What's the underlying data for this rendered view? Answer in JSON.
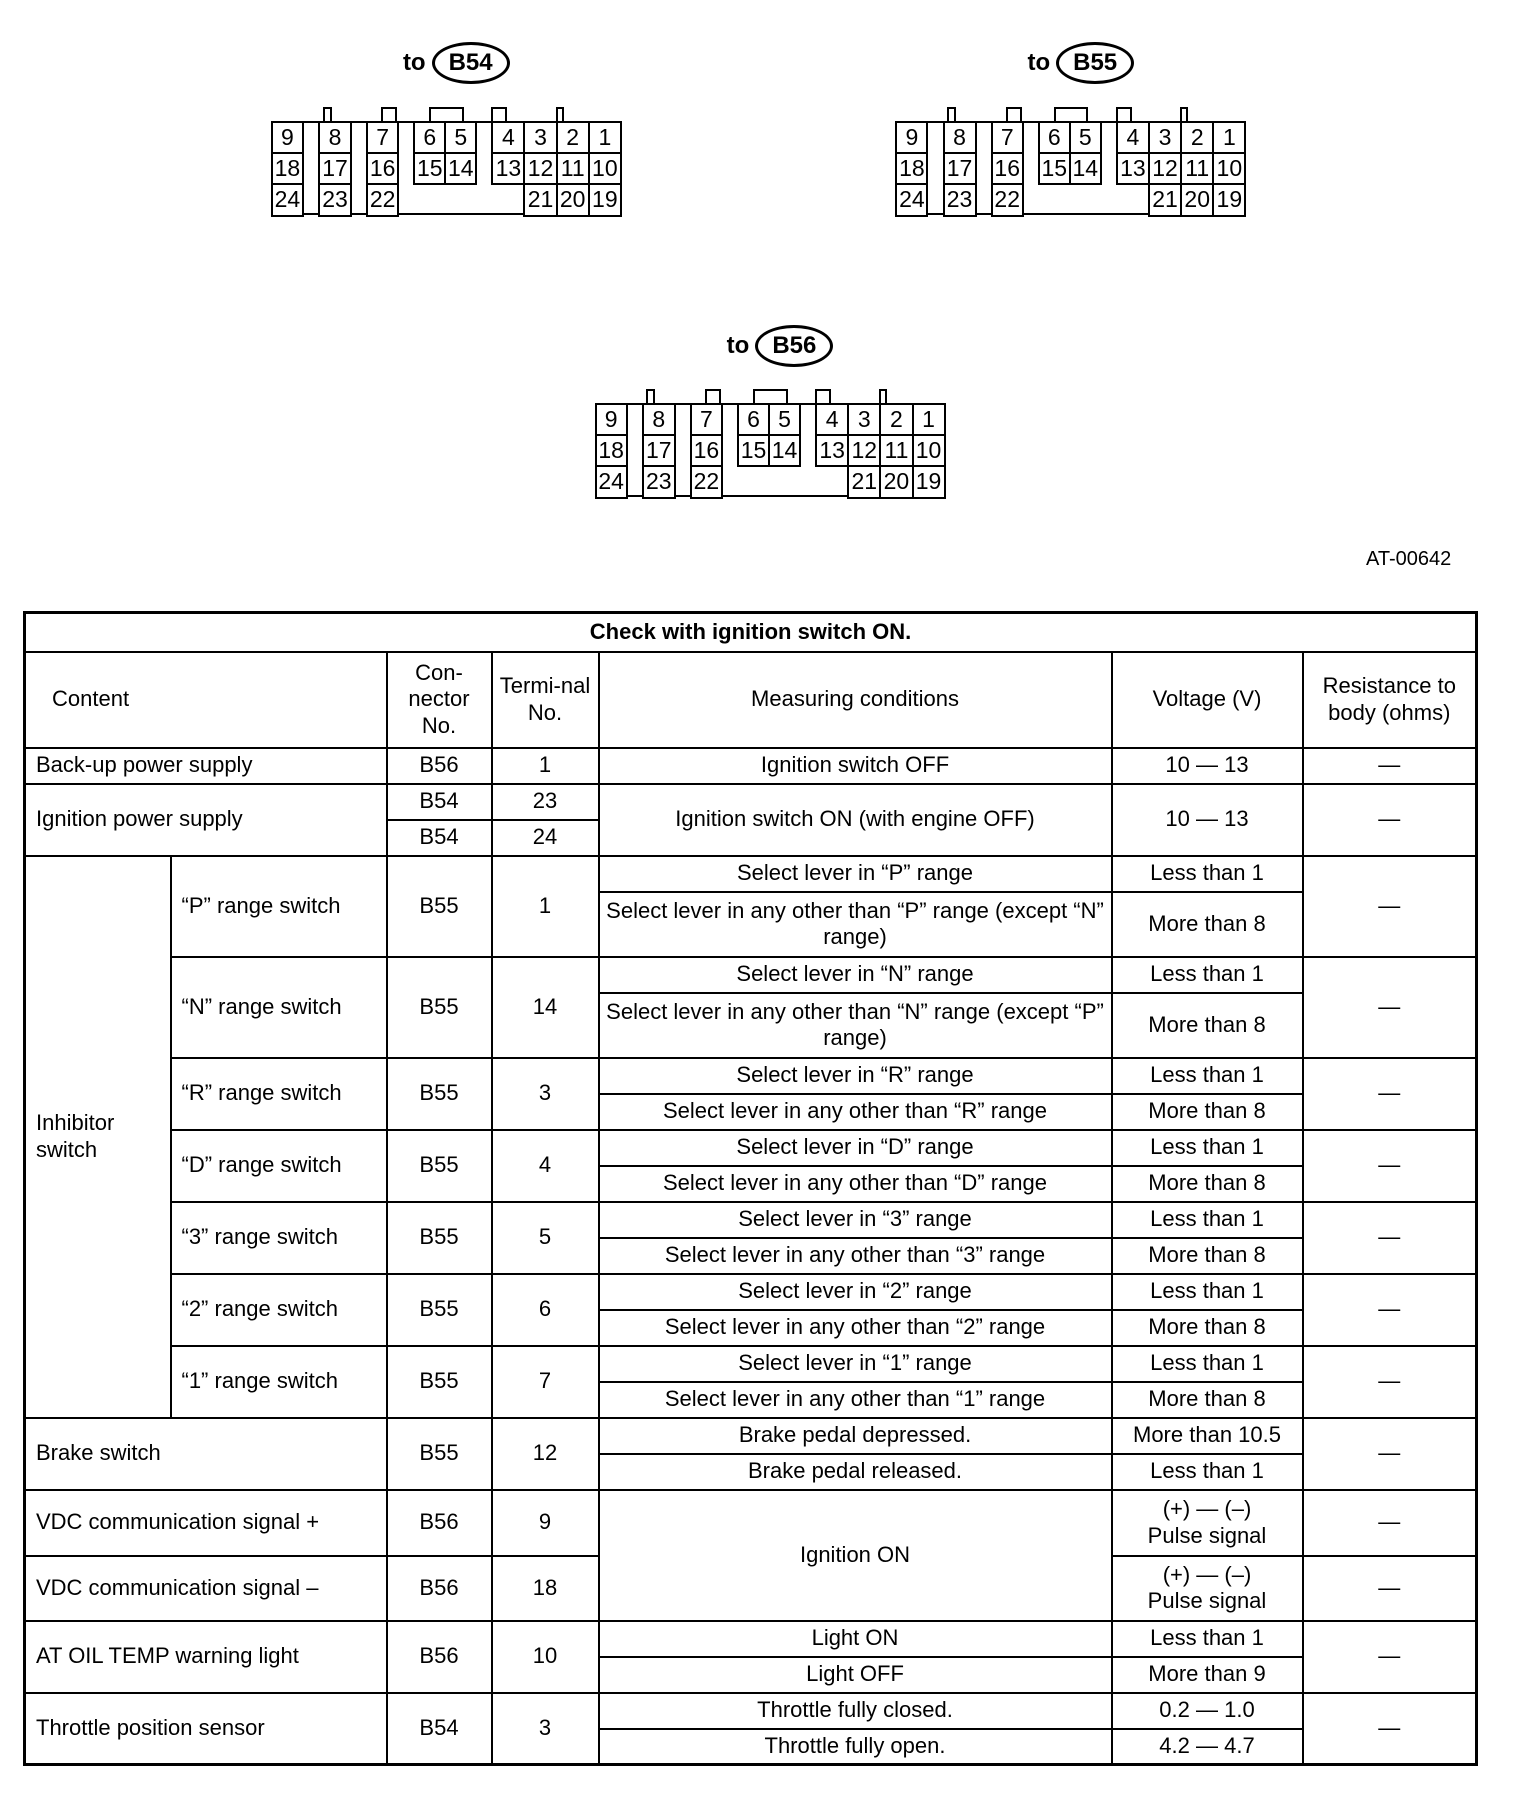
{
  "connectors": [
    {
      "prefix": "to",
      "name": "B54",
      "rows": [
        [
          "9",
          "8",
          "7",
          "6",
          "5",
          "4",
          "3",
          "2",
          "1"
        ],
        [
          "18",
          "17",
          "16",
          "15",
          "14",
          "13",
          "12",
          "11",
          "10"
        ],
        [
          "24",
          "23",
          "22",
          "",
          "",
          "",
          "21",
          "20",
          "19"
        ]
      ]
    },
    {
      "prefix": "to",
      "name": "B55",
      "rows": [
        [
          "9",
          "8",
          "7",
          "6",
          "5",
          "4",
          "3",
          "2",
          "1"
        ],
        [
          "18",
          "17",
          "16",
          "15",
          "14",
          "13",
          "12",
          "11",
          "10"
        ],
        [
          "24",
          "23",
          "22",
          "",
          "",
          "",
          "21",
          "20",
          "19"
        ]
      ]
    },
    {
      "prefix": "to",
      "name": "B56",
      "rows": [
        [
          "9",
          "8",
          "7",
          "6",
          "5",
          "4",
          "3",
          "2",
          "1"
        ],
        [
          "18",
          "17",
          "16",
          "15",
          "14",
          "13",
          "12",
          "11",
          "10"
        ],
        [
          "24",
          "23",
          "22",
          "",
          "",
          "",
          "21",
          "20",
          "19"
        ]
      ]
    }
  ],
  "figure_id": "AT-00642",
  "table": {
    "title": "Check with ignition switch ON.",
    "headers": {
      "content": "Content",
      "connector": "Con-nector No.",
      "terminal": "Termi-nal No.",
      "conditions": "Measuring conditions",
      "voltage": "Voltage (V)",
      "resistance": "Resistance to body (ohms)"
    },
    "inhibitor_label": "Inhibitor switch",
    "rows": [
      {
        "content": "Back-up power supply",
        "conn": "B56",
        "term": "1",
        "cond": "Ignition switch OFF",
        "volt": "10 — 13",
        "res": "—"
      },
      {
        "content": "Ignition power supply",
        "conn": [
          "B54",
          "B54"
        ],
        "term": [
          "23",
          "24"
        ],
        "cond": "Ignition switch ON (with engine OFF)",
        "volt": "10 — 13",
        "res": "—"
      },
      {
        "content": "“P” range switch",
        "conn": "B55",
        "term": "1",
        "cond": [
          "Select lever in “P” range",
          "Select lever in any other than “P” range (except “N” range)"
        ],
        "volt": [
          "Less than 1",
          "More than 8"
        ],
        "res": "—"
      },
      {
        "content": "“N” range switch",
        "conn": "B55",
        "term": "14",
        "cond": [
          "Select lever in “N” range",
          "Select lever in any other than “N” range (except “P” range)"
        ],
        "volt": [
          "Less than 1",
          "More than 8"
        ],
        "res": "—"
      },
      {
        "content": "“R” range switch",
        "conn": "B55",
        "term": "3",
        "cond": [
          "Select lever in “R” range",
          "Select lever in any other than “R” range"
        ],
        "volt": [
          "Less than 1",
          "More than 8"
        ],
        "res": "—"
      },
      {
        "content": "“D” range switch",
        "conn": "B55",
        "term": "4",
        "cond": [
          "Select lever in “D” range",
          "Select lever in any other than “D” range"
        ],
        "volt": [
          "Less than 1",
          "More than 8"
        ],
        "res": "—"
      },
      {
        "content": "“3” range switch",
        "conn": "B55",
        "term": "5",
        "cond": [
          "Select lever in “3” range",
          "Select lever in any other than “3” range"
        ],
        "volt": [
          "Less than 1",
          "More than 8"
        ],
        "res": "—"
      },
      {
        "content": "“2” range switch",
        "conn": "B55",
        "term": "6",
        "cond": [
          "Select lever in “2” range",
          "Select lever in any other than “2” range"
        ],
        "volt": [
          "Less than 1",
          "More than 8"
        ],
        "res": "—"
      },
      {
        "content": "“1” range switch",
        "conn": "B55",
        "term": "7",
        "cond": [
          "Select lever in “1” range",
          "Select lever in any other than “1” range"
        ],
        "volt": [
          "Less than 1",
          "More than 8"
        ],
        "res": "—"
      },
      {
        "content": "Brake switch",
        "conn": "B55",
        "term": "12",
        "cond": [
          "Brake pedal depressed.",
          "Brake pedal released."
        ],
        "volt": [
          "More than 10.5",
          "Less than 1"
        ],
        "res": "—"
      },
      {
        "content": "VDC communication signal +",
        "conn": "B56",
        "term": "9",
        "cond": "Ignition ON",
        "volt": "(+) — (–) Pulse signal",
        "res": "—"
      },
      {
        "content": "VDC communication signal –",
        "conn": "B56",
        "term": "18",
        "volt": "(+) — (–) Pulse signal",
        "res": "—"
      },
      {
        "content": "AT OIL TEMP warning light",
        "conn": "B56",
        "term": "10",
        "cond": [
          "Light ON",
          "Light OFF"
        ],
        "volt": [
          "Less than 1",
          "More than 9"
        ],
        "res": "—"
      },
      {
        "content": "Throttle position sensor",
        "conn": "B54",
        "term": "3",
        "cond": [
          "Throttle fully closed.",
          "Throttle fully open."
        ],
        "volt": [
          "0.2 — 1.0",
          "4.2 — 4.7"
        ],
        "res": "—"
      }
    ]
  }
}
